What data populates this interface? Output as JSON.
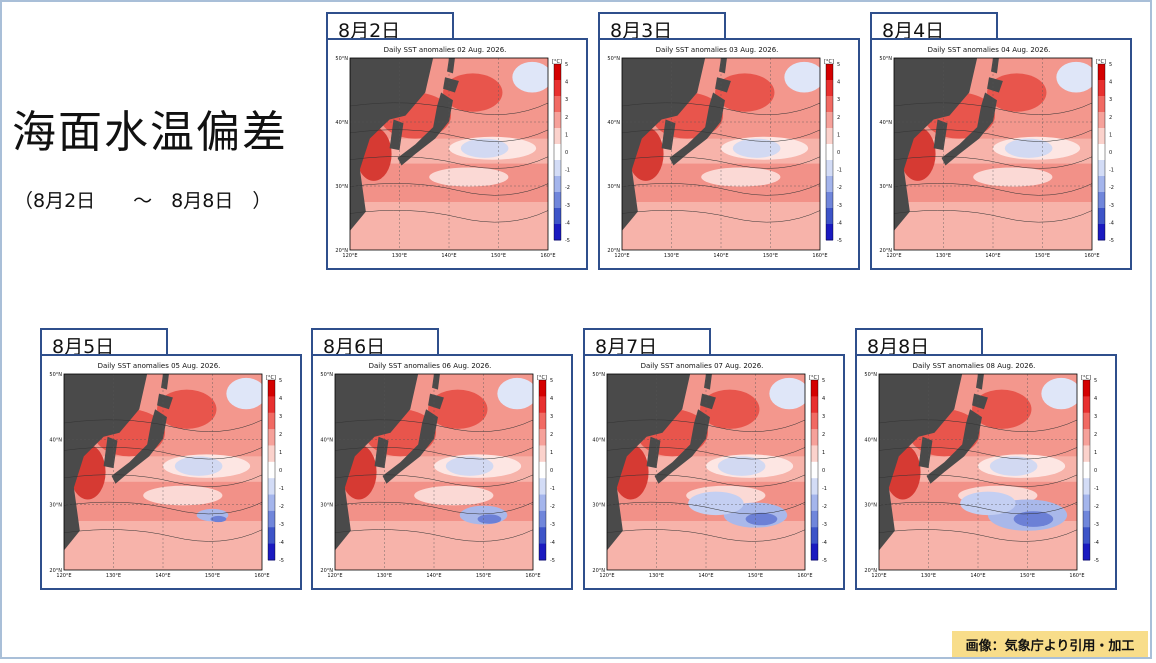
{
  "page_title": "海面水温偏差",
  "date_range": "（8月2日　　～　8月8日　）",
  "credit": "画像：気象庁より引用・加工",
  "colorbar_labels": [
    "5",
    "4",
    "3",
    "2",
    "1",
    "0",
    "-1",
    "-2",
    "-3",
    "-4",
    "-5"
  ],
  "colorbar_unit": "[°C]",
  "lat_labels": [
    "50°N",
    "40°N",
    "30°N",
    "20°N"
  ],
  "lon_labels": [
    "120°E",
    "130°E",
    "140°E",
    "150°E",
    "160°E"
  ],
  "maps": [
    {
      "tab": "8月2日",
      "title": "Daily SST anomalies 02 Aug. 2026.",
      "cold_spot": 0.1
    },
    {
      "tab": "8月3日",
      "title": "Daily SST anomalies 03 Aug. 2026.",
      "cold_spot": 0.2
    },
    {
      "tab": "8月4日",
      "title": "Daily SST anomalies 04 Aug. 2026.",
      "cold_spot": 0.2
    },
    {
      "tab": "8月5日",
      "title": "Daily SST anomalies 05 Aug. 2026.",
      "cold_spot": 0.4
    },
    {
      "tab": "8月6日",
      "title": "Daily SST anomalies 06 Aug. 2026.",
      "cold_spot": 0.6
    },
    {
      "tab": "8月7日",
      "title": "Daily SST anomalies 07 Aug. 2026.",
      "cold_spot": 0.8
    },
    {
      "tab": "8月8日",
      "title": "Daily SST anomalies 08 Aug. 2026.",
      "cold_spot": 1.0
    }
  ]
}
